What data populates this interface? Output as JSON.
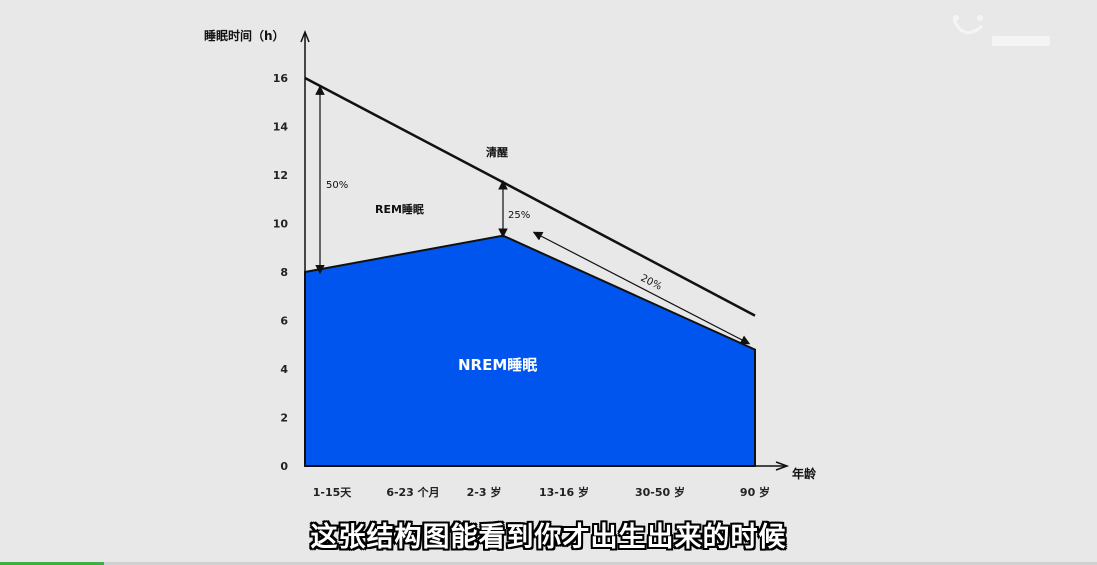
{
  "chart_data": {
    "type": "area",
    "ylabel": "睡眠时间（h）",
    "xlabel": "年龄",
    "ylim": [
      0,
      16
    ],
    "yticks": [
      0,
      2,
      4,
      6,
      8,
      10,
      12,
      14,
      16
    ],
    "categories": [
      "1-15天",
      "6-23 个月",
      "2-3 岁",
      "13-16 岁",
      "30-50 岁",
      "90 岁"
    ],
    "series": [
      {
        "name": "清醒",
        "kind": "line",
        "points": [
          [
            0,
            16
          ],
          [
            2,
            11.7
          ],
          [
            5,
            6.2
          ]
        ]
      },
      {
        "name": "NREM睡眠",
        "kind": "area",
        "points": [
          [
            0,
            8
          ],
          [
            2,
            9.5
          ],
          [
            5,
            4.8
          ]
        ]
      }
    ],
    "region_labels": {
      "wake": "清醒",
      "rem": "REM睡眠",
      "nrem": "NREM睡眠"
    },
    "annotations": [
      "50%",
      "25%",
      "20%"
    ],
    "colors": {
      "nrem": "#0055ee",
      "line": "#111111",
      "background": "#e8e8e8"
    },
    "grid": false
  },
  "subtitle": "这张结构图能看到你才出生出来的时候",
  "watermark_icon": "smiley-logo-icon",
  "video_progress": 0.095
}
